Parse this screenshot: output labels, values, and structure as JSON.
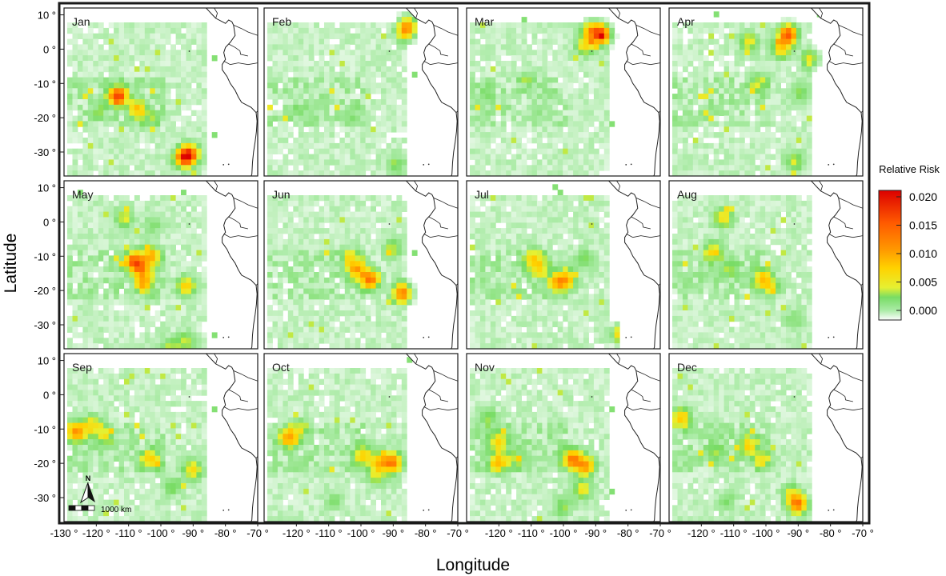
{
  "chart_data": {
    "type": "heatmap",
    "description_panels": 12,
    "xlabel": "Longitude",
    "ylabel": "Latitude",
    "xlim": [
      -130,
      -70
    ],
    "ylim": [
      -37,
      12
    ],
    "x_ticks": [
      {
        "v": -130,
        "label": "-130 °"
      },
      {
        "v": -120,
        "label": "-120 °"
      },
      {
        "v": -110,
        "label": "-110 °"
      },
      {
        "v": -100,
        "label": "-100 °"
      },
      {
        "v": -90,
        "label": "-90 °"
      },
      {
        "v": -80,
        "label": "-80 °"
      },
      {
        "v": -70,
        "label": "-70 °"
      }
    ],
    "panel_x_ticks": [
      {
        "v": -120,
        "label": "-120 °"
      },
      {
        "v": -110,
        "label": "-110 °"
      },
      {
        "v": -100,
        "label": "-100 °"
      },
      {
        "v": -90,
        "label": "-90 °"
      },
      {
        "v": -80,
        "label": "-80 °"
      },
      {
        "v": -70,
        "label": "-70 °"
      }
    ],
    "y_ticks": [
      {
        "v": 10,
        "label": "10 °"
      },
      {
        "v": 0,
        "label": "0 °"
      },
      {
        "v": -10,
        "label": "-10 °"
      },
      {
        "v": -20,
        "label": "-20 °"
      },
      {
        "v": -30,
        "label": "-30 °"
      }
    ],
    "legend": {
      "title": "Relative Risk",
      "ticks": [
        "0.020",
        "0.015",
        "0.010",
        "0.005",
        "0.000"
      ],
      "min": 0,
      "max": 0.02,
      "colors": [
        "#ffffff",
        "#d4f7d4",
        "#7de27d",
        "#e6ef30",
        "#ffd400",
        "#ff9900",
        "#ff5a00",
        "#e00000"
      ]
    },
    "north_arrow": "N",
    "scale_bar": "1000 km",
    "panels": [
      {
        "month": "Jan",
        "hotspots": [
          {
            "lon": -114,
            "lat": -13,
            "risk": 0.016
          },
          {
            "lon": -108,
            "lat": -17,
            "risk": 0.007
          },
          {
            "lon": -92,
            "lat": -30,
            "risk": 0.015
          },
          {
            "lon": -94,
            "lat": -31,
            "risk": 0.01
          },
          {
            "lon": -120,
            "lat": -17,
            "risk": 0.002
          },
          {
            "lon": -104,
            "lat": -20,
            "risk": 0.002
          }
        ]
      },
      {
        "month": "Feb",
        "hotspots": [
          {
            "lon": -87,
            "lat": 6,
            "risk": 0.008
          },
          {
            "lon": -86,
            "lat": 8,
            "risk": 0.006
          },
          {
            "lon": -120,
            "lat": -17,
            "risk": 0.001
          },
          {
            "lon": -104,
            "lat": -18,
            "risk": 0.001
          },
          {
            "lon": -90,
            "lat": -33,
            "risk": 0.003
          }
        ]
      },
      {
        "month": "Mar",
        "hotspots": [
          {
            "lon": -89,
            "lat": 5,
            "risk": 0.014
          },
          {
            "lon": -92,
            "lat": 6,
            "risk": 0.009
          },
          {
            "lon": -94,
            "lat": 2,
            "risk": 0.006
          },
          {
            "lon": -125,
            "lat": -13,
            "risk": 0.002
          },
          {
            "lon": -112,
            "lat": -8,
            "risk": 0.002
          }
        ]
      },
      {
        "month": "Apr",
        "hotspots": [
          {
            "lon": -94,
            "lat": 5,
            "risk": 0.014
          },
          {
            "lon": -96,
            "lat": 1,
            "risk": 0.007
          },
          {
            "lon": -106,
            "lat": 3,
            "risk": 0.005
          },
          {
            "lon": -87,
            "lat": -2,
            "risk": 0.005
          },
          {
            "lon": -103,
            "lat": -9,
            "risk": 0.004
          },
          {
            "lon": -90,
            "lat": -12,
            "risk": 0.003
          },
          {
            "lon": -92,
            "lat": -32,
            "risk": 0.004
          }
        ]
      },
      {
        "month": "May",
        "hotspots": [
          {
            "lon": -109,
            "lat": -11,
            "risk": 0.014
          },
          {
            "lon": -104,
            "lat": -9,
            "risk": 0.008
          },
          {
            "lon": -106,
            "lat": -13,
            "risk": 0.007
          },
          {
            "lon": -106,
            "lat": -17,
            "risk": 0.009
          },
          {
            "lon": -93,
            "lat": -18,
            "risk": 0.007
          },
          {
            "lon": -112,
            "lat": 2,
            "risk": 0.004
          },
          {
            "lon": -103,
            "lat": 0,
            "risk": 0.002
          },
          {
            "lon": -98,
            "lat": -36,
            "risk": 0.004
          },
          {
            "lon": -93,
            "lat": -34,
            "risk": 0.004
          }
        ]
      },
      {
        "month": "Jun",
        "hotspots": [
          {
            "lon": -98,
            "lat": -16,
            "risk": 0.013
          },
          {
            "lon": -102,
            "lat": -13,
            "risk": 0.008
          },
          {
            "lon": -104,
            "lat": -10,
            "risk": 0.005
          },
          {
            "lon": -88,
            "lat": -20,
            "risk": 0.012
          },
          {
            "lon": -91,
            "lat": -7,
            "risk": 0.004
          }
        ]
      },
      {
        "month": "Jul",
        "hotspots": [
          {
            "lon": -100,
            "lat": -16,
            "risk": 0.009
          },
          {
            "lon": -103,
            "lat": -17,
            "risk": 0.006
          },
          {
            "lon": -110,
            "lat": -10,
            "risk": 0.006
          },
          {
            "lon": -108,
            "lat": -13,
            "risk": 0.005
          },
          {
            "lon": -94,
            "lat": -10,
            "risk": 0.003
          },
          {
            "lon": -83,
            "lat": -32,
            "risk": 0.008
          }
        ]
      },
      {
        "month": "Aug",
        "hotspots": [
          {
            "lon": -114,
            "lat": 2,
            "risk": 0.006
          },
          {
            "lon": -117,
            "lat": -8,
            "risk": 0.006
          },
          {
            "lon": -112,
            "lat": -13,
            "risk": 0.003
          },
          {
            "lon": -102,
            "lat": -16,
            "risk": 0.007
          },
          {
            "lon": -99,
            "lat": -18,
            "risk": 0.004
          },
          {
            "lon": -92,
            "lat": -28,
            "risk": 0.002
          }
        ]
      },
      {
        "month": "Sep",
        "hotspots": [
          {
            "lon": -127,
            "lat": -10,
            "risk": 0.01
          },
          {
            "lon": -122,
            "lat": -8,
            "risk": 0.006
          },
          {
            "lon": -118,
            "lat": -11,
            "risk": 0.004
          },
          {
            "lon": -104,
            "lat": -18,
            "risk": 0.007
          },
          {
            "lon": -91,
            "lat": -21,
            "risk": 0.006
          },
          {
            "lon": -97,
            "lat": -26,
            "risk": 0.003
          }
        ]
      },
      {
        "month": "Oct",
        "hotspots": [
          {
            "lon": -123,
            "lat": -12,
            "risk": 0.009
          },
          {
            "lon": -120,
            "lat": -9,
            "risk": 0.004
          },
          {
            "lon": -100,
            "lat": -17,
            "risk": 0.007
          },
          {
            "lon": -95,
            "lat": -19,
            "risk": 0.008
          },
          {
            "lon": -91,
            "lat": -19,
            "risk": 0.012
          },
          {
            "lon": -96,
            "lat": -23,
            "risk": 0.004
          },
          {
            "lon": -109,
            "lat": -30,
            "risk": 0.002
          }
        ]
      },
      {
        "month": "Nov",
        "hotspots": [
          {
            "lon": -121,
            "lat": -13,
            "risk": 0.007
          },
          {
            "lon": -121,
            "lat": -19,
            "risk": 0.008
          },
          {
            "lon": -116,
            "lat": -18,
            "risk": 0.003
          },
          {
            "lon": -98,
            "lat": -18,
            "risk": 0.012
          },
          {
            "lon": -94,
            "lat": -20,
            "risk": 0.01
          },
          {
            "lon": -95,
            "lat": -27,
            "risk": 0.005
          },
          {
            "lon": -101,
            "lat": -32,
            "risk": 0.003
          },
          {
            "lon": -124,
            "lat": -6,
            "risk": 0.003
          }
        ]
      },
      {
        "month": "Dec",
        "hotspots": [
          {
            "lon": -127,
            "lat": -6,
            "risk": 0.008
          },
          {
            "lon": -106,
            "lat": -14,
            "risk": 0.006
          },
          {
            "lon": -102,
            "lat": -18,
            "risk": 0.005
          },
          {
            "lon": -91,
            "lat": -31,
            "risk": 0.012
          },
          {
            "lon": -93,
            "lat": -28,
            "risk": 0.004
          },
          {
            "lon": -116,
            "lat": -16,
            "risk": 0.003
          },
          {
            "lon": -113,
            "lat": -30,
            "risk": 0.002
          }
        ]
      }
    ]
  }
}
